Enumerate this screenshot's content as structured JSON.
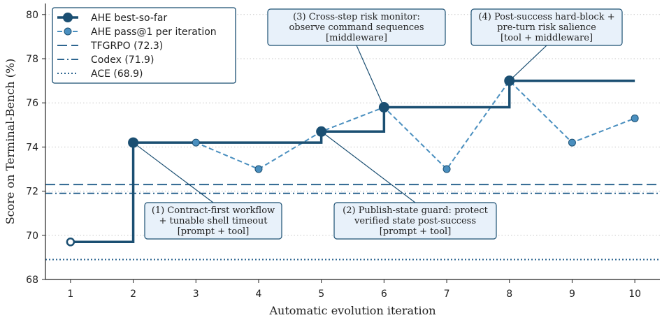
{
  "chart_data": {
    "type": "line",
    "xlabel": "Automatic evolution iteration",
    "ylabel": "Score on Terminal-Bench (%)",
    "xlim": [
      0.6,
      10.4
    ],
    "ylim": [
      68,
      80.5
    ],
    "xticks": [
      1,
      2,
      3,
      4,
      5,
      6,
      7,
      8,
      9,
      10
    ],
    "yticks": [
      68,
      70,
      72,
      74,
      76,
      78,
      80
    ],
    "grid": "horizontal dotted",
    "legend_position": "top-left",
    "series": [
      {
        "name": "AHE best-so-far",
        "style": "step",
        "color": "#1b4f72",
        "x": [
          1,
          2,
          3,
          4,
          5,
          6,
          7,
          8,
          9,
          10
        ],
        "y": [
          69.7,
          74.2,
          74.2,
          74.2,
          74.7,
          75.8,
          75.8,
          77.0,
          77.0,
          77.0
        ],
        "markers_at": [
          1,
          2,
          5,
          6,
          8
        ],
        "open_marker_at": [
          1
        ]
      },
      {
        "name": "AHE pass@1 per iteration",
        "style": "dashed",
        "color": "#4a8fbf",
        "x": [
          2,
          3,
          4,
          5,
          6,
          7,
          8,
          9,
          10
        ],
        "y": [
          74.2,
          74.2,
          73.0,
          74.7,
          75.8,
          73.0,
          77.0,
          74.2,
          75.3
        ]
      }
    ],
    "reference_lines": [
      {
        "name": "TFGRPO (72.3)",
        "value": 72.3,
        "style": "dashed",
        "color": "#2e6690"
      },
      {
        "name": "Codex (71.9)",
        "value": 71.9,
        "style": "dashdot",
        "color": "#2e6690"
      },
      {
        "name": "ACE (68.9)",
        "value": 68.9,
        "style": "dotted",
        "color": "#2e6690"
      }
    ],
    "annotations": [
      {
        "point": [
          2,
          74.2
        ],
        "lines": [
          "(1) Contract-first workflow",
          "+ tunable shell timeout",
          "[prompt + tool]"
        ]
      },
      {
        "point": [
          5,
          74.7
        ],
        "lines": [
          "(2) Publish-state guard: protect",
          "verified state post-success",
          "[prompt + tool]"
        ]
      },
      {
        "point": [
          6,
          75.8
        ],
        "lines": [
          "(3) Cross-step risk monitor:",
          "observe command sequences",
          "[middleware]"
        ]
      },
      {
        "point": [
          8,
          77.0
        ],
        "lines": [
          "(4) Post-success hard-block +",
          "pre-turn risk salience",
          "[tool + middleware]"
        ]
      }
    ]
  }
}
